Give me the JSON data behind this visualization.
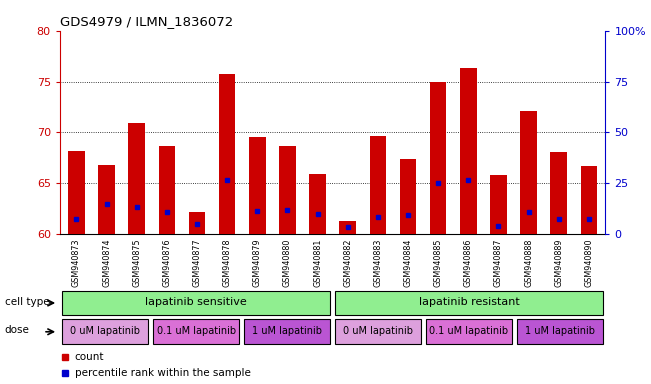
{
  "title": "GDS4979 / ILMN_1836072",
  "samples": [
    "GSM940873",
    "GSM940874",
    "GSM940875",
    "GSM940876",
    "GSM940877",
    "GSM940878",
    "GSM940879",
    "GSM940880",
    "GSM940881",
    "GSM940882",
    "GSM940883",
    "GSM940884",
    "GSM940885",
    "GSM940886",
    "GSM940887",
    "GSM940888",
    "GSM940889",
    "GSM940890"
  ],
  "red_values": [
    68.2,
    66.8,
    70.9,
    68.7,
    62.2,
    75.7,
    69.6,
    68.7,
    65.9,
    61.3,
    69.7,
    67.4,
    75.0,
    76.3,
    65.8,
    72.1,
    68.1,
    66.7
  ],
  "blue_values": [
    61.5,
    63.0,
    62.7,
    62.2,
    61.0,
    65.3,
    62.3,
    62.4,
    62.0,
    60.7,
    61.7,
    61.9,
    65.0,
    65.3,
    60.8,
    62.2,
    61.5,
    61.5
  ],
  "y_min": 60,
  "y_max": 80,
  "y_ticks": [
    60,
    65,
    70,
    75,
    80
  ],
  "y2_ticks": [
    0,
    25,
    50,
    75,
    100
  ],
  "bar_color": "#CC0000",
  "blue_color": "#0000CC",
  "bg_color": "#FFFFFF",
  "left_axis_color": "#CC0000",
  "right_axis_color": "#0000CC",
  "cell_type_sensitive_color": "#90EE90",
  "cell_type_resistant_color": "#90EE90",
  "dose_color_0": "#DDA0DD",
  "dose_color_01": "#DA70D6",
  "dose_color_1": "#BA55D3",
  "bar_width": 0.55
}
